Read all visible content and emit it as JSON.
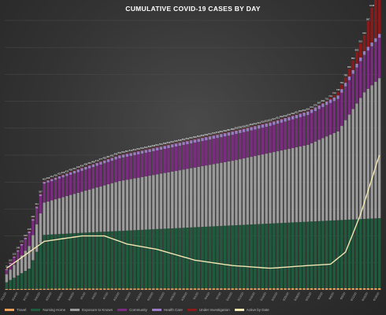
{
  "chart_data": {
    "type": "bar",
    "title": "CUMULATIVE COVID-19 CASES BY DAY",
    "stacked": true,
    "grid": true,
    "legend_position": "bottom",
    "n_days": 100,
    "ylim": [
      0,
      1000
    ],
    "x": [
      "3/11/20",
      "3/14/20",
      "3/17/20",
      "3/20/20",
      "3/23/20",
      "3/26/20",
      "3/29/20",
      "4/1/20",
      "4/4/20",
      "4/7/20",
      "4/10/20",
      "4/13/20",
      "4/16/20",
      "4/19/20",
      "4/22/20",
      "4/25/20",
      "4/28/20",
      "5/1/20",
      "5/4/20",
      "5/7/20",
      "5/10/20",
      "5/13/20",
      "5/16/20",
      "5/19/20",
      "5/22/20",
      "5/25/20",
      "5/28/20",
      "5/31/20",
      "6/3/20",
      "6/6/20",
      "6/9/20",
      "6/12/20",
      "6/15/20",
      "6/18/20"
    ],
    "series": [
      {
        "name": "Travel",
        "color": "#e8a05a",
        "knots": [
          [
            0,
            3
          ],
          [
            20,
            5
          ],
          [
            99,
            6
          ]
        ]
      },
      {
        "name": "Nursing Home",
        "color": "#1f5c3e",
        "knots": [
          [
            0,
            25
          ],
          [
            6,
            75
          ],
          [
            10,
            200
          ],
          [
            99,
            260
          ]
        ]
      },
      {
        "name": "Exposure to Known",
        "color": "#9a9a9a",
        "knots": [
          [
            0,
            30
          ],
          [
            10,
            120
          ],
          [
            30,
            185
          ],
          [
            60,
            240
          ],
          [
            80,
            285
          ],
          [
            88,
            330
          ],
          [
            95,
            470
          ],
          [
            99,
            520
          ]
        ]
      },
      {
        "name": "Community",
        "color": "#7a2c7e",
        "knots": [
          [
            0,
            15
          ],
          [
            10,
            70
          ],
          [
            30,
            85
          ],
          [
            70,
            100
          ],
          [
            88,
            120
          ],
          [
            99,
            150
          ]
        ]
      },
      {
        "name": "Health Care",
        "color": "#9b7bc4",
        "knots": [
          [
            0,
            4
          ],
          [
            20,
            10
          ],
          [
            99,
            14
          ]
        ]
      },
      {
        "name": "Under Investigation",
        "color": "#8b1a1a",
        "knots": [
          [
            0,
            2
          ],
          [
            85,
            2
          ],
          [
            90,
            20
          ],
          [
            95,
            60
          ],
          [
            99,
            200
          ]
        ]
      }
    ],
    "line": {
      "name": "Active by Date",
      "color": "#f2e6b3",
      "knots": [
        [
          0,
          80
        ],
        [
          10,
          180
        ],
        [
          20,
          200
        ],
        [
          26,
          200
        ],
        [
          32,
          170
        ],
        [
          40,
          150
        ],
        [
          50,
          110
        ],
        [
          60,
          90
        ],
        [
          70,
          80
        ],
        [
          80,
          90
        ],
        [
          86,
          95
        ],
        [
          90,
          140
        ],
        [
          94,
          280
        ],
        [
          99,
          500
        ]
      ]
    },
    "data_labels_visible": true
  }
}
